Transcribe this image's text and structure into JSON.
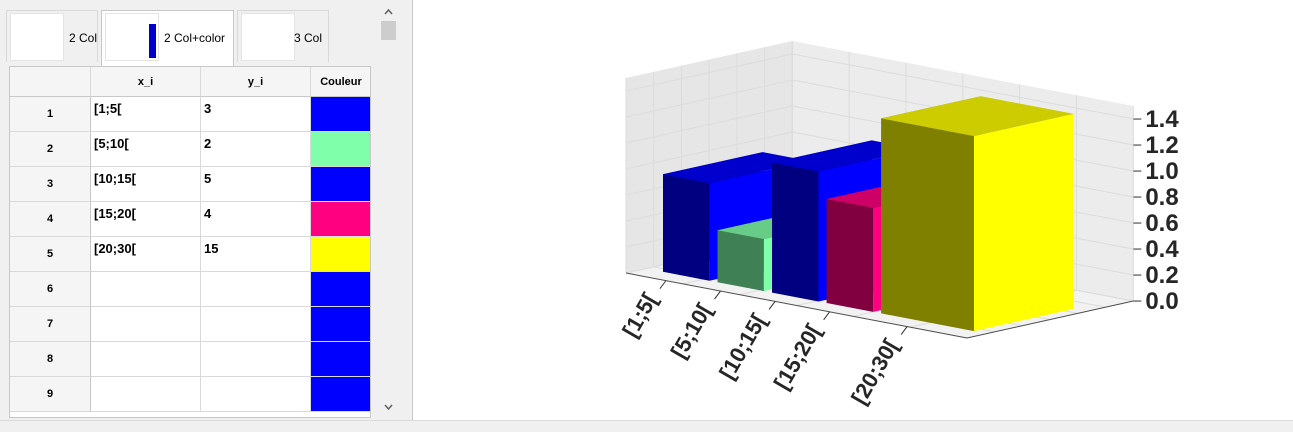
{
  "tabs": [
    {
      "label": "2 Col",
      "active": false
    },
    {
      "label": "2 Col+color",
      "active": true
    },
    {
      "label": "3 Col",
      "active": false
    }
  ],
  "table": {
    "headers": [
      "x_i",
      "y_i",
      "Couleur"
    ],
    "rows": [
      {
        "num": "1",
        "x": "[1;5[",
        "y": "3",
        "color": "#0000ff"
      },
      {
        "num": "2",
        "x": "[5;10[",
        "y": "2",
        "color": "#80ffaa"
      },
      {
        "num": "3",
        "x": "[10;15[",
        "y": "5",
        "color": "#0000ff"
      },
      {
        "num": "4",
        "x": "[15;20[",
        "y": "4",
        "color": "#ff0080"
      },
      {
        "num": "5",
        "x": "[20;30[",
        "y": "15",
        "color": "#ffff00"
      },
      {
        "num": "6",
        "x": "",
        "y": "",
        "color": "#0000ff"
      },
      {
        "num": "7",
        "x": "",
        "y": "",
        "color": "#0000ff"
      },
      {
        "num": "8",
        "x": "",
        "y": "",
        "color": "#0000ff"
      },
      {
        "num": "9",
        "x": "",
        "y": "",
        "color": "#0000ff"
      }
    ]
  },
  "icons": {
    "scroll_up": "chevron-up-icon",
    "scroll_down": "chevron-down-icon"
  },
  "chart_data": {
    "type": "bar",
    "categories": [
      "[1;5[",
      "[5;10[",
      "[10;15[",
      "[15;20[",
      "[20;30["
    ],
    "values": [
      0.75,
      0.4,
      1.0,
      0.8,
      1.5
    ],
    "colors": [
      "#0000ff",
      "#80ffaa",
      "#0000ff",
      "#ff0080",
      "#ffff00"
    ],
    "zlim": [
      0,
      1.5
    ],
    "z_ticks": [
      "0.0",
      "0.2",
      "0.4",
      "0.6",
      "0.8",
      "1.0",
      "1.2",
      "1.4"
    ],
    "title": "",
    "xlabel": "",
    "ylabel": "",
    "grid": true,
    "projection": "3d"
  }
}
